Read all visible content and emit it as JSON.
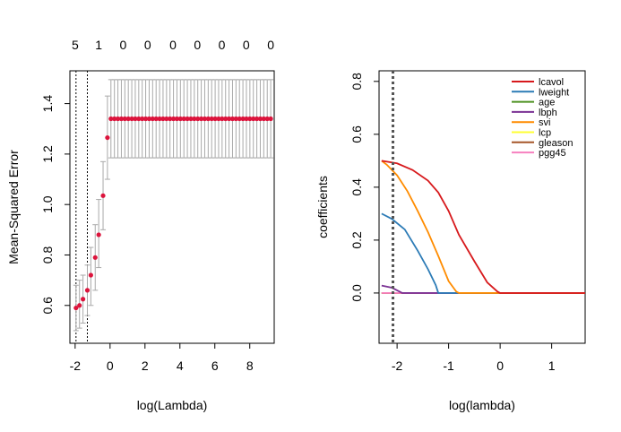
{
  "chart_data": [
    {
      "type": "scatter",
      "xlabel": "log(Lambda)",
      "ylabel": "Mean-Squared Error",
      "xlim": [
        -2.3,
        9.4
      ],
      "ylim": [
        0.45,
        1.53
      ],
      "x_ticks": [
        -2,
        0,
        2,
        4,
        6,
        8
      ],
      "y_ticks": [
        0.6,
        0.8,
        1.0,
        1.2,
        1.4
      ],
      "x_tick_labels": [
        "-2",
        "0",
        "2",
        "4",
        "6",
        "8"
      ],
      "y_tick_labels": [
        "0.6",
        "0.8",
        "1.0",
        "1.2",
        "1.4"
      ],
      "top_labels": [
        {
          "x": -2.0,
          "text": "5"
        },
        {
          "x": -0.65,
          "text": "1"
        },
        {
          "x": 0.75,
          "text": "0"
        },
        {
          "x": 2.15,
          "text": "0"
        },
        {
          "x": 3.6,
          "text": "0"
        },
        {
          "x": 5.0,
          "text": "0"
        },
        {
          "x": 6.4,
          "text": "0"
        },
        {
          "x": 7.8,
          "text": "0"
        },
        {
          "x": 9.2,
          "text": "0"
        }
      ],
      "vlines": [
        -1.95,
        -1.3
      ],
      "point_color": "#dc143c",
      "errorbar_color": "#a9a9a9",
      "vline_color": "#000000",
      "points": [
        {
          "x": -1.95,
          "y": 0.59,
          "lo": 0.5,
          "hi": 0.68
        },
        {
          "x": -1.75,
          "y": 0.6,
          "lo": 0.51,
          "hi": 0.7
        },
        {
          "x": -1.55,
          "y": 0.625,
          "lo": 0.53,
          "hi": 0.72
        },
        {
          "x": -1.3,
          "y": 0.66,
          "lo": 0.56,
          "hi": 0.76
        },
        {
          "x": -1.1,
          "y": 0.72,
          "lo": 0.6,
          "hi": 0.83
        },
        {
          "x": -0.85,
          "y": 0.79,
          "lo": 0.66,
          "hi": 0.92
        },
        {
          "x": -0.65,
          "y": 0.88,
          "lo": 0.75,
          "hi": 1.02
        },
        {
          "x": -0.4,
          "y": 1.035,
          "lo": 0.9,
          "hi": 1.17
        },
        {
          "x": -0.15,
          "y": 1.265,
          "lo": 1.1,
          "hi": 1.43
        },
        {
          "x": 0.05,
          "y": 1.34,
          "lo": 1.185,
          "hi": 1.495
        }
      ],
      "plateau": {
        "x_start": 0.25,
        "x_end": 9.2,
        "count": 46,
        "y": 1.34,
        "lo": 1.185,
        "hi": 1.495
      }
    },
    {
      "type": "line",
      "xlabel": "log(lambda)",
      "ylabel": "coefficients",
      "xlim": [
        -2.35,
        1.65
      ],
      "ylim": [
        -0.19,
        0.84
      ],
      "x_ticks": [
        -2,
        -1,
        0,
        1
      ],
      "y_ticks": [
        0.0,
        0.2,
        0.4,
        0.6,
        0.8
      ],
      "x_tick_labels": [
        "-2",
        "-1",
        "0",
        "1"
      ],
      "y_tick_labels": [
        "0.0",
        "0.2",
        "0.4",
        "0.6",
        "0.8"
      ],
      "vline_x": -2.08,
      "vline_color": "#555555",
      "legend_position": "top-right",
      "series": [
        {
          "name": "lcavol",
          "color": "#d7191c",
          "points": [
            [
              -2.3,
              0.5
            ],
            [
              -2.0,
              0.49
            ],
            [
              -1.7,
              0.465
            ],
            [
              -1.4,
              0.425
            ],
            [
              -1.2,
              0.38
            ],
            [
              -1.0,
              0.31
            ],
            [
              -0.8,
              0.22
            ],
            [
              -0.5,
              0.12
            ],
            [
              -0.25,
              0.04
            ],
            [
              -0.05,
              0.005
            ],
            [
              0.0,
              0.0
            ],
            [
              1.65,
              0.0
            ]
          ]
        },
        {
          "name": "lweight",
          "color": "#2c7bb6",
          "points": [
            [
              -2.3,
              0.3
            ],
            [
              -2.1,
              0.28
            ],
            [
              -1.85,
              0.24
            ],
            [
              -1.6,
              0.16
            ],
            [
              -1.4,
              0.09
            ],
            [
              -1.25,
              0.03
            ],
            [
              -1.2,
              0.0
            ],
            [
              1.65,
              0.0
            ]
          ]
        },
        {
          "name": "age",
          "color": "#4d9221",
          "points": [
            [
              -2.3,
              0.0
            ],
            [
              1.65,
              0.0
            ]
          ]
        },
        {
          "name": "lbph",
          "color": "#7b3294",
          "points": [
            [
              -2.3,
              0.028
            ],
            [
              -2.1,
              0.02
            ],
            [
              -1.95,
              0.005
            ],
            [
              -1.9,
              0.0
            ],
            [
              1.65,
              0.0
            ]
          ]
        },
        {
          "name": "svi",
          "color": "#ff8c00",
          "points": [
            [
              -2.3,
              0.5
            ],
            [
              -2.2,
              0.485
            ],
            [
              -2.0,
              0.445
            ],
            [
              -1.8,
              0.385
            ],
            [
              -1.6,
              0.31
            ],
            [
              -1.4,
              0.23
            ],
            [
              -1.2,
              0.14
            ],
            [
              -1.0,
              0.045
            ],
            [
              -0.85,
              0.005
            ],
            [
              -0.8,
              0.0
            ],
            [
              1.65,
              0.0
            ]
          ]
        },
        {
          "name": "lcp",
          "color": "#ffff33",
          "points": [
            [
              -2.3,
              0.0
            ],
            [
              1.65,
              0.0
            ]
          ]
        },
        {
          "name": "gleason",
          "color": "#a65628",
          "points": [
            [
              -2.3,
              0.0
            ],
            [
              1.65,
              0.0
            ]
          ]
        },
        {
          "name": "pgg45",
          "color": "#f781bf",
          "points": [
            [
              -2.3,
              0.0
            ],
            [
              1.65,
              0.0
            ]
          ]
        }
      ]
    }
  ]
}
